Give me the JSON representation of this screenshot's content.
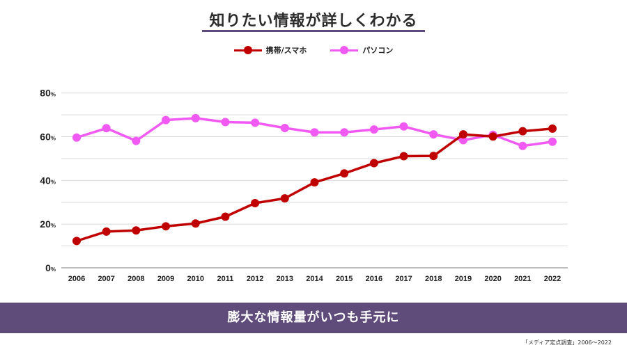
{
  "title": "知りたい情報が詳しくわかる",
  "banner_text": "膨大な情報量がいつも手元に",
  "source": "「メディア定点調査」2006～2022",
  "chart_data": {
    "type": "line",
    "title": "知りたい情報が詳しくわかる",
    "categories": [
      "2006",
      "2007",
      "2008",
      "2009",
      "2010",
      "2011",
      "2012",
      "2013",
      "2014",
      "2015",
      "2016",
      "2017",
      "2018",
      "2019",
      "2020",
      "2021",
      "2022"
    ],
    "series": [
      {
        "name": "携帯/スマホ",
        "color": "#c00000",
        "values": [
          12.3,
          16.6,
          17.1,
          19.0,
          20.3,
          23.4,
          29.6,
          31.8,
          39.1,
          43.2,
          47.9,
          51.1,
          51.2,
          61.1,
          60.1,
          62.5,
          63.7
        ]
      },
      {
        "name": "パソコン",
        "color": "#f15af2",
        "values": [
          59.6,
          63.9,
          58.1,
          67.6,
          68.5,
          66.7,
          66.4,
          64.0,
          62.0,
          62.0,
          63.3,
          64.7,
          61.1,
          58.4,
          60.9,
          55.8,
          57.7
        ]
      }
    ],
    "yticks": [
      0,
      20,
      40,
      60,
      80
    ],
    "ytick_unit": "%",
    "ylim": [
      0,
      85
    ],
    "grid": true,
    "legend_position": "top-center"
  }
}
